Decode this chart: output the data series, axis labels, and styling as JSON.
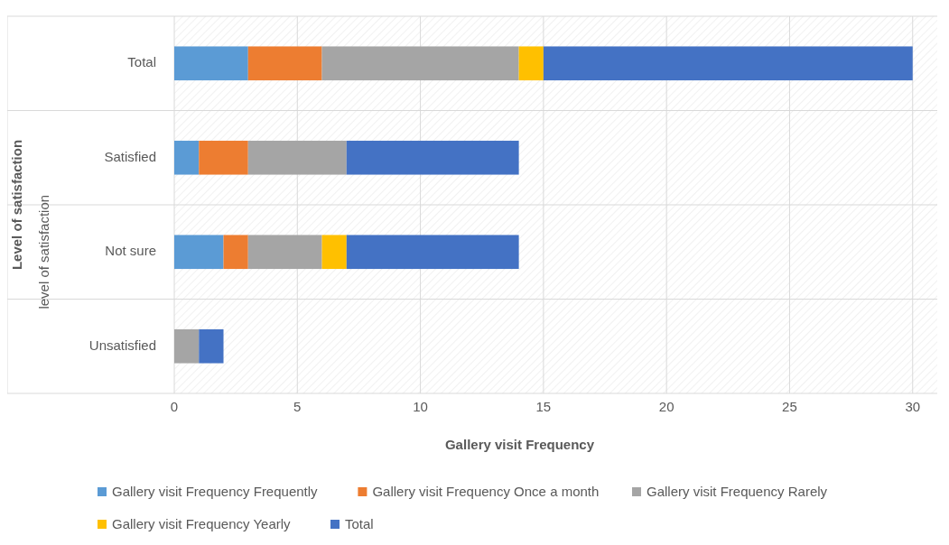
{
  "chart_data": {
    "type": "bar",
    "orientation": "horizontal",
    "stacked": true,
    "categories": [
      "Total",
      "Satisfied",
      "Not sure",
      "Unsatisfied"
    ],
    "series": [
      {
        "name": "Gallery visit Frequency Frequently",
        "color": "#5b9bd5",
        "values": [
          3,
          1,
          2,
          0
        ]
      },
      {
        "name": "Gallery visit Frequency Once a month",
        "color": "#ed7d31",
        "values": [
          3,
          2,
          1,
          0
        ]
      },
      {
        "name": "Gallery visit Frequency Rarely",
        "color": "#a5a5a5",
        "values": [
          8,
          4,
          3,
          1
        ]
      },
      {
        "name": "Gallery visit Frequency Yearly",
        "color": "#ffc000",
        "values": [
          1,
          0,
          1,
          0
        ]
      },
      {
        "name": "Total",
        "color": "#4472c4",
        "values": [
          15,
          7,
          7,
          1
        ]
      }
    ],
    "xlim": [
      0,
      31
    ],
    "xticks": [
      0,
      5,
      10,
      15,
      20,
      25,
      30
    ],
    "xlabel": "Gallery visit Frequency",
    "ylabel": "Level of satisfaction",
    "annotations": [
      "level of satisfaction"
    ],
    "grid": "x",
    "legend": "bottom"
  }
}
